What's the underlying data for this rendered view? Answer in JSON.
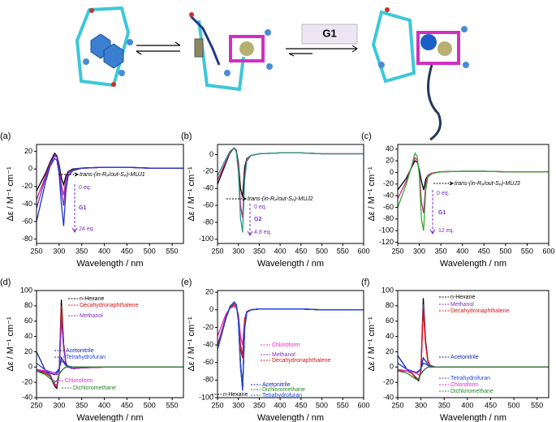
{
  "diagram": {
    "reagent": "G1"
  },
  "chart_data": [
    {
      "type": "line",
      "label": "(a)",
      "xlabel": "Wavelength / nm",
      "ylabel": "Δε / M⁻¹ cm⁻¹",
      "xlim": [
        250,
        575
      ],
      "ylim": [
        -85,
        28
      ],
      "xticks": [
        250,
        300,
        350,
        400,
        450,
        500,
        550
      ],
      "yticks": [
        -80,
        -60,
        -40,
        -20,
        0,
        20
      ],
      "annotations": [
        "trans-(in-Rₚ/out-Sₚ)-MUJ1",
        "0 eq.",
        "G1",
        "24 eq."
      ],
      "x": [
        250,
        270,
        280,
        290,
        295,
        300,
        305,
        310,
        315,
        320,
        330,
        350,
        400,
        450,
        500,
        550,
        575
      ],
      "series": [
        {
          "color": "#000000",
          "values": [
            -25,
            -5,
            8,
            18,
            15,
            5,
            -10,
            -18,
            -8,
            -3,
            0,
            1,
            2,
            2,
            1,
            1,
            1
          ]
        },
        {
          "color": "#cc2288",
          "values": [
            -35,
            -8,
            6,
            16,
            14,
            2,
            -18,
            -30,
            -12,
            -4,
            -1,
            1,
            2,
            2,
            1,
            1,
            1
          ]
        },
        {
          "color": "#7a2fc0",
          "values": [
            -45,
            -10,
            5,
            15,
            13,
            0,
            -25,
            -42,
            -15,
            -5,
            -1,
            1,
            2,
            2,
            1,
            1,
            1
          ]
        },
        {
          "color": "#2233cc",
          "values": [
            -60,
            -15,
            3,
            12,
            10,
            -5,
            -40,
            -65,
            -25,
            -8,
            -2,
            1,
            2,
            2,
            1,
            1,
            1
          ]
        }
      ]
    },
    {
      "type": "line",
      "label": "(b)",
      "xlabel": "Wavelength / nm",
      "ylabel": "Δε / M⁻¹ cm⁻¹",
      "xlim": [
        250,
        600
      ],
      "ylim": [
        -105,
        12
      ],
      "xticks": [
        250,
        300,
        350,
        400,
        450,
        500,
        550,
        600
      ],
      "yticks": [
        -100,
        -80,
        -60,
        -40,
        -20,
        0
      ],
      "annotations": [
        "trans-(in-Rₚ/out-Sₚ)-MUJ2",
        "0 eq.",
        "G2",
        "4.8 eq."
      ],
      "x": [
        250,
        270,
        280,
        290,
        295,
        300,
        305,
        310,
        315,
        320,
        330,
        350,
        400,
        450,
        500,
        550,
        600
      ],
      "series": [
        {
          "color": "#000000",
          "values": [
            -35,
            -10,
            2,
            8,
            5,
            -10,
            -40,
            -50,
            -15,
            -5,
            -1,
            1,
            2,
            2,
            1,
            1,
            1
          ]
        },
        {
          "color": "#cc2288",
          "values": [
            -30,
            -8,
            3,
            8,
            4,
            -15,
            -60,
            -75,
            -25,
            -6,
            -1,
            1,
            2,
            2,
            1,
            1,
            1
          ]
        },
        {
          "color": "#2a9a8a",
          "values": [
            -25,
            -5,
            4,
            8,
            3,
            -20,
            -75,
            -92,
            -30,
            -8,
            -1,
            1,
            2,
            2,
            1,
            1,
            1
          ]
        }
      ]
    },
    {
      "type": "line",
      "label": "(c)",
      "xlabel": "Wavelength / nm",
      "ylabel": "Δε / M⁻¹ cm⁻¹",
      "xlim": [
        250,
        600
      ],
      "ylim": [
        -122,
        48
      ],
      "xticks": [
        250,
        300,
        350,
        400,
        450,
        500,
        550,
        600
      ],
      "yticks": [
        -120,
        -100,
        -80,
        -60,
        -40,
        -20,
        0,
        20,
        40
      ],
      "annotations": [
        "trans-(in-Rₚ/out-Sₚ)-MUJ3",
        "0 eq.",
        "G1",
        "12 eq."
      ],
      "x": [
        250,
        270,
        280,
        290,
        295,
        300,
        305,
        310,
        315,
        320,
        330,
        350,
        400,
        450,
        500,
        550,
        600
      ],
      "series": [
        {
          "color": "#000000",
          "values": [
            -30,
            -10,
            5,
            20,
            18,
            5,
            -15,
            -30,
            -12,
            -5,
            -1,
            1,
            2,
            2,
            1,
            1,
            1
          ]
        },
        {
          "color": "#cc2288",
          "values": [
            -45,
            -15,
            5,
            25,
            22,
            0,
            -50,
            -70,
            -20,
            -5,
            -1,
            1,
            2,
            2,
            1,
            1,
            1
          ]
        },
        {
          "color": "#33aa33",
          "values": [
            -60,
            -20,
            5,
            33,
            28,
            -5,
            -80,
            -100,
            -30,
            -8,
            -2,
            1,
            2,
            2,
            1,
            1,
            1
          ]
        }
      ]
    },
    {
      "type": "line",
      "label": "(d)",
      "xlabel": "Wavelength / nm",
      "ylabel": "Δε / M⁻¹ cm⁻¹",
      "xlim": [
        250,
        575
      ],
      "ylim": [
        -40,
        100
      ],
      "xticks": [
        250,
        300,
        350,
        400,
        450,
        500,
        550
      ],
      "yticks": [
        -40,
        -20,
        0,
        20,
        40,
        60,
        80,
        100
      ],
      "x": [
        250,
        270,
        280,
        290,
        295,
        300,
        305,
        310,
        315,
        320,
        330,
        350,
        400,
        450,
        500,
        550,
        575
      ],
      "series": [
        {
          "name": "n-Hexane",
          "color": "#000000",
          "values": [
            -5,
            -8,
            -12,
            -25,
            -28,
            -10,
            88,
            30,
            5,
            0,
            -2,
            -1,
            0,
            0,
            0,
            0,
            0
          ]
        },
        {
          "name": "Decahydronaphthalene",
          "color": "#dd1111",
          "values": [
            -3,
            -8,
            -12,
            -24,
            -26,
            -8,
            80,
            28,
            5,
            0,
            -2,
            -1,
            0,
            0,
            0,
            0,
            0
          ]
        },
        {
          "name": "Methanol",
          "color": "#7a2fc0",
          "values": [
            -5,
            -6,
            -10,
            -22,
            -24,
            -8,
            62,
            25,
            4,
            0,
            -2,
            -1,
            0,
            0,
            0,
            0,
            0
          ]
        },
        {
          "name": "Acetonitrile",
          "color": "#1122aa",
          "values": [
            20,
            -5,
            -8,
            -10,
            -8,
            -3,
            12,
            8,
            3,
            1,
            0,
            0,
            0,
            0,
            0,
            0,
            0
          ]
        },
        {
          "name": "Tetrahydrofuran",
          "color": "#2244dd",
          "values": [
            5,
            -4,
            -6,
            -8,
            -6,
            -2,
            8,
            6,
            2,
            1,
            0,
            0,
            0,
            0,
            0,
            0,
            0
          ]
        },
        {
          "name": "Chloroform",
          "color": "#ee22cc",
          "values": [
            -3,
            -5,
            -6,
            -8,
            -10,
            -8,
            -5,
            -2,
            0,
            0,
            0,
            0,
            0,
            0,
            0,
            0,
            0
          ]
        },
        {
          "name": "Dichloromethane",
          "color": "#228822",
          "values": [
            -5,
            -10,
            -15,
            -20,
            -18,
            -10,
            -5,
            -2,
            0,
            0,
            0,
            0,
            0,
            0,
            0,
            0,
            0
          ]
        }
      ]
    },
    {
      "type": "line",
      "label": "(e)",
      "xlabel": "Wavelength / nm",
      "ylabel": "Δε / M⁻¹ cm⁻¹",
      "xlim": [
        250,
        600
      ],
      "ylim": [
        -100,
        22
      ],
      "xticks": [
        250,
        300,
        350,
        400,
        450,
        500,
        550,
        600
      ],
      "yticks": [
        -100,
        -80,
        -60,
        -40,
        -20,
        0,
        20
      ],
      "x": [
        250,
        270,
        280,
        290,
        295,
        300,
        305,
        310,
        315,
        320,
        330,
        350,
        400,
        450,
        500,
        550,
        600
      ],
      "series": [
        {
          "name": "n-Hexane",
          "color": "#000000",
          "values": [
            -45,
            -10,
            3,
            8,
            6,
            -10,
            -60,
            -88,
            -20,
            -3,
            0,
            1,
            1,
            1,
            0,
            0,
            0
          ]
        },
        {
          "name": "Chloroform",
          "color": "#ee22cc",
          "values": [
            -30,
            -5,
            2,
            4,
            2,
            -5,
            -30,
            -40,
            -10,
            -2,
            0,
            1,
            1,
            1,
            0,
            0,
            0
          ]
        },
        {
          "name": "Methanol",
          "color": "#7a2fc0",
          "values": [
            -40,
            -8,
            2,
            6,
            4,
            -8,
            -40,
            -52,
            -12,
            -2,
            0,
            1,
            1,
            1,
            0,
            0,
            0
          ]
        },
        {
          "name": "Decahydronaphthalene",
          "color": "#dd1111",
          "values": [
            -42,
            -8,
            2,
            6,
            4,
            -8,
            -45,
            -55,
            -12,
            -2,
            0,
            1,
            1,
            1,
            0,
            0,
            0
          ]
        },
        {
          "name": "Acetonitrile",
          "color": "#1122aa",
          "values": [
            -45,
            -10,
            4,
            9,
            6,
            -12,
            -65,
            -90,
            -22,
            -3,
            0,
            1,
            1,
            1,
            0,
            0,
            0
          ]
        },
        {
          "name": "Dichloromethane",
          "color": "#228822",
          "values": [
            -45,
            -10,
            3,
            8,
            6,
            -12,
            -62,
            -89,
            -21,
            -3,
            0,
            1,
            1,
            1,
            0,
            0,
            0
          ]
        },
        {
          "name": "Tetrahydrofuran",
          "color": "#2244dd",
          "values": [
            -45,
            -10,
            4,
            9,
            6,
            -12,
            -64,
            -92,
            -22,
            -3,
            0,
            1,
            1,
            1,
            0,
            0,
            0
          ]
        }
      ]
    },
    {
      "type": "line",
      "label": "(f)",
      "xlabel": "Wavelength / nm",
      "ylabel": "Δε / M⁻¹ cm⁻¹",
      "xlim": [
        250,
        575
      ],
      "ylim": [
        -40,
        100
      ],
      "xticks": [
        250,
        300,
        350,
        400,
        450,
        500,
        550
      ],
      "yticks": [
        -40,
        -20,
        0,
        20,
        40,
        60,
        80,
        100
      ],
      "x": [
        250,
        270,
        280,
        290,
        295,
        300,
        305,
        310,
        315,
        320,
        330,
        350,
        400,
        450,
        500,
        550,
        575
      ],
      "series": [
        {
          "name": "n-Hexane",
          "color": "#000000",
          "values": [
            -5,
            -5,
            -8,
            -15,
            -18,
            -5,
            90,
            35,
            8,
            2,
            0,
            0,
            0,
            0,
            0,
            0,
            0
          ]
        },
        {
          "name": "Methanol",
          "color": "#7a2fc0",
          "values": [
            -5,
            -5,
            -8,
            -14,
            -17,
            -5,
            82,
            32,
            7,
            2,
            0,
            0,
            0,
            0,
            0,
            0,
            0
          ]
        },
        {
          "name": "Decahydronaphthalene",
          "color": "#dd1111",
          "values": [
            -5,
            -5,
            -8,
            -14,
            -16,
            -4,
            75,
            30,
            7,
            2,
            0,
            0,
            0,
            0,
            0,
            0,
            0
          ]
        },
        {
          "name": "Acetonitrile",
          "color": "#1122aa",
          "values": [
            15,
            -3,
            -6,
            -8,
            -6,
            -2,
            12,
            8,
            3,
            1,
            0,
            0,
            0,
            0,
            0,
            0,
            0
          ]
        },
        {
          "name": "Tetrahydrofuran",
          "color": "#2244dd",
          "values": [
            5,
            -3,
            -5,
            -7,
            -5,
            -2,
            5,
            4,
            2,
            1,
            0,
            0,
            0,
            0,
            0,
            0,
            0
          ]
        },
        {
          "name": "Chloroform",
          "color": "#ee22cc",
          "values": [
            -3,
            -5,
            -6,
            -8,
            -10,
            -8,
            -5,
            -2,
            0,
            0,
            0,
            0,
            0,
            0,
            0,
            0,
            0
          ]
        },
        {
          "name": "Dichloromethane",
          "color": "#228822",
          "values": [
            -5,
            -8,
            -12,
            -16,
            -15,
            -9,
            -5,
            -2,
            0,
            0,
            0,
            0,
            0,
            0,
            0,
            0,
            0
          ]
        }
      ]
    }
  ]
}
